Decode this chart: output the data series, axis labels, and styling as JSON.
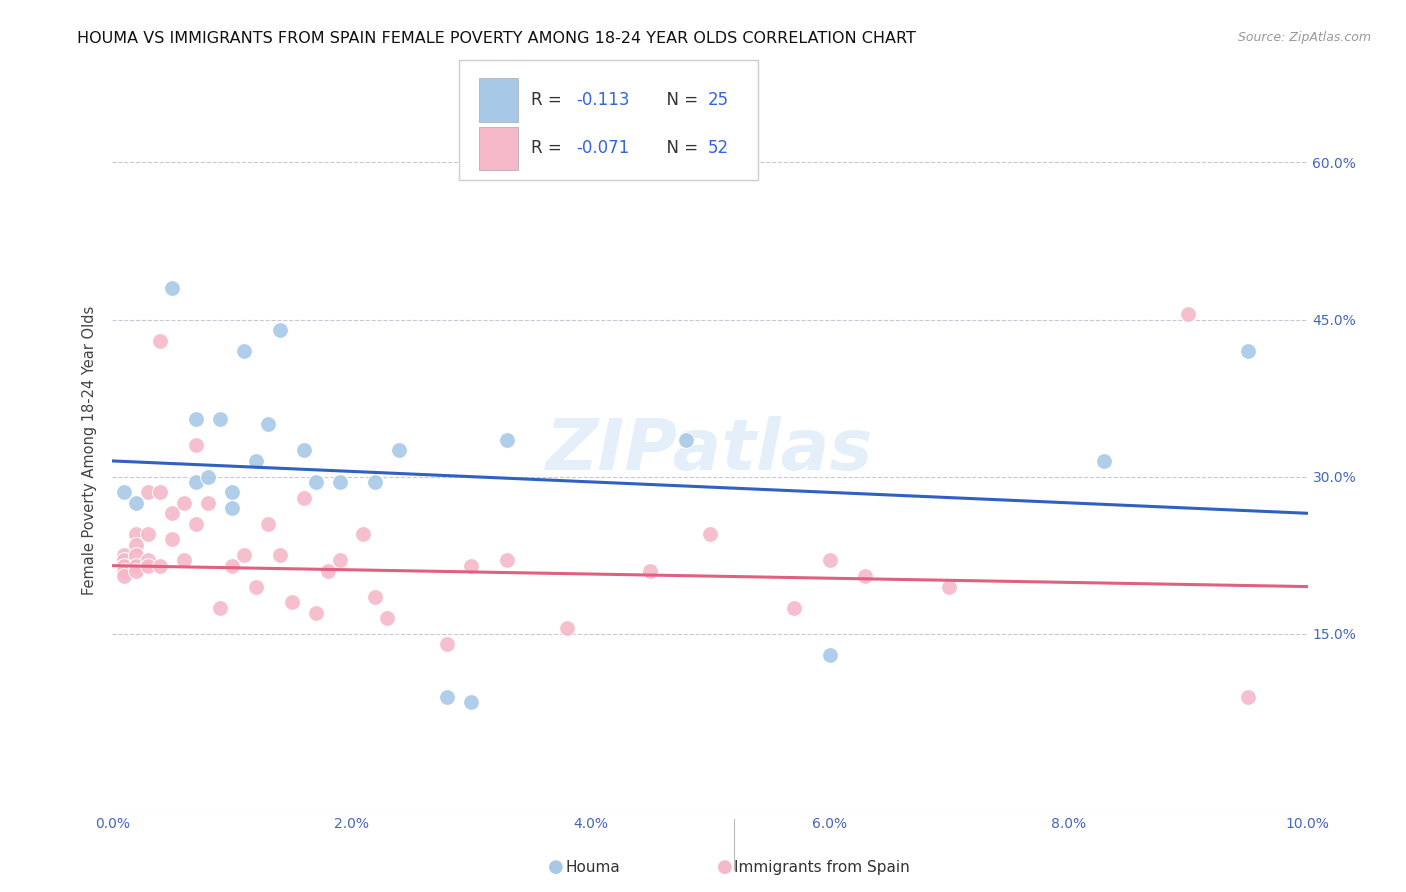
{
  "title": "HOUMA VS IMMIGRANTS FROM SPAIN FEMALE POVERTY AMONG 18-24 YEAR OLDS CORRELATION CHART",
  "source": "Source: ZipAtlas.com",
  "ylabel": "Female Poverty Among 18-24 Year Olds",
  "xlim": [
    0.0,
    0.1
  ],
  "ylim": [
    -0.02,
    0.67
  ],
  "xtick_labels": [
    "0.0%",
    "2.0%",
    "4.0%",
    "6.0%",
    "8.0%",
    "10.0%"
  ],
  "xtick_vals": [
    0.0,
    0.02,
    0.04,
    0.06,
    0.08,
    0.1
  ],
  "ytick_labels": [
    "15.0%",
    "30.0%",
    "45.0%",
    "60.0%"
  ],
  "ytick_vals": [
    0.15,
    0.3,
    0.45,
    0.6
  ],
  "R_houma": -0.113,
  "N_houma": 25,
  "R_spain": -0.071,
  "N_spain": 52,
  "watermark": "ZIPatlas",
  "blue_color": "#a8c8e8",
  "pink_color": "#f5b8c8",
  "blue_line_color": "#3060c0",
  "pink_line_color": "#e06080",
  "houma_x": [
    0.001,
    0.002,
    0.005,
    0.007,
    0.007,
    0.008,
    0.009,
    0.01,
    0.01,
    0.011,
    0.012,
    0.013,
    0.014,
    0.016,
    0.017,
    0.019,
    0.022,
    0.024,
    0.028,
    0.03,
    0.033,
    0.048,
    0.06,
    0.083,
    0.095
  ],
  "houma_y": [
    0.285,
    0.275,
    0.48,
    0.355,
    0.295,
    0.3,
    0.355,
    0.27,
    0.285,
    0.42,
    0.315,
    0.35,
    0.44,
    0.325,
    0.295,
    0.295,
    0.295,
    0.325,
    0.09,
    0.085,
    0.335,
    0.335,
    0.13,
    0.315,
    0.42
  ],
  "spain_x": [
    0.001,
    0.001,
    0.001,
    0.001,
    0.001,
    0.001,
    0.001,
    0.002,
    0.002,
    0.002,
    0.002,
    0.002,
    0.003,
    0.003,
    0.003,
    0.003,
    0.004,
    0.004,
    0.004,
    0.005,
    0.005,
    0.006,
    0.006,
    0.007,
    0.007,
    0.008,
    0.009,
    0.01,
    0.011,
    0.012,
    0.013,
    0.014,
    0.015,
    0.016,
    0.017,
    0.018,
    0.019,
    0.021,
    0.022,
    0.023,
    0.028,
    0.03,
    0.033,
    0.038,
    0.045,
    0.05,
    0.057,
    0.06,
    0.063,
    0.07,
    0.09,
    0.095
  ],
  "spain_y": [
    0.225,
    0.22,
    0.215,
    0.215,
    0.21,
    0.21,
    0.205,
    0.245,
    0.235,
    0.225,
    0.215,
    0.21,
    0.285,
    0.245,
    0.22,
    0.215,
    0.43,
    0.285,
    0.215,
    0.265,
    0.24,
    0.275,
    0.22,
    0.33,
    0.255,
    0.275,
    0.175,
    0.215,
    0.225,
    0.195,
    0.255,
    0.225,
    0.18,
    0.28,
    0.17,
    0.21,
    0.22,
    0.245,
    0.185,
    0.165,
    0.14,
    0.215,
    0.22,
    0.155,
    0.21,
    0.245,
    0.175,
    0.22,
    0.205,
    0.195,
    0.455,
    0.09
  ],
  "houma_trendline_y0": 0.315,
  "houma_trendline_y1": 0.265,
  "spain_trendline_y0": 0.215,
  "spain_trendline_y1": 0.195,
  "grid_color": "#c8c8d8",
  "background_color": "#ffffff",
  "title_fontsize": 11.5,
  "axis_label_fontsize": 10.5,
  "tick_fontsize": 10,
  "legend_fontsize": 11
}
